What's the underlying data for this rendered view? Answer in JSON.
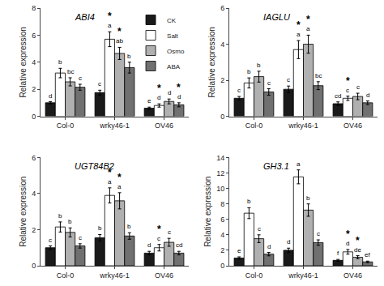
{
  "chart_data": [
    {
      "type": "bar",
      "title": "ABI4",
      "ylabel": "Relative expression",
      "categories": [
        "Col-0",
        "wrky46-1",
        "OV46"
      ],
      "ylim": [
        0,
        8
      ],
      "yticks": [
        0,
        2,
        4,
        6,
        8
      ],
      "grid": false,
      "legend": "upper right",
      "series": [
        {
          "name": "CK",
          "color": "#1a1a1a",
          "values": [
            1.0,
            1.75,
            0.6
          ],
          "errors": [
            0.08,
            0.18,
            0.08
          ],
          "letters": [
            "d",
            "c",
            "e"
          ],
          "stars": [
            null,
            null,
            null
          ]
        },
        {
          "name": "Salt",
          "color": "#ffffff",
          "values": [
            3.2,
            5.7,
            0.8
          ],
          "errors": [
            0.35,
            0.55,
            0.12
          ],
          "letters": [
            "b",
            "a",
            "d"
          ],
          "stars": [
            null,
            "*",
            "*"
          ]
        },
        {
          "name": "Osmo",
          "color": "#b0b0b0",
          "values": [
            2.55,
            4.65,
            1.1
          ],
          "errors": [
            0.3,
            0.45,
            0.18
          ],
          "letters": [
            "bc",
            "ab",
            "d"
          ],
          "stars": [
            null,
            "*",
            null
          ]
        },
        {
          "name": "ABA",
          "color": "#707070",
          "values": [
            2.15,
            3.6,
            0.85
          ],
          "errors": [
            0.22,
            0.4,
            0.15
          ],
          "letters": [
            "c",
            "b",
            "d"
          ],
          "stars": [
            null,
            null,
            "*"
          ]
        }
      ]
    },
    {
      "type": "bar",
      "title": "IAGLU",
      "ylabel": "Relative expression",
      "categories": [
        "Col-0",
        "wrky46-1",
        "OV46"
      ],
      "ylim": [
        0,
        6
      ],
      "yticks": [
        0,
        2,
        4,
        6
      ],
      "grid": false,
      "series": [
        {
          "name": "CK",
          "color": "#1a1a1a",
          "values": [
            1.0,
            1.5,
            0.7
          ],
          "errors": [
            0.1,
            0.18,
            0.1
          ],
          "letters": [
            "c",
            "c",
            "cd"
          ],
          "stars": [
            null,
            null,
            null
          ]
        },
        {
          "name": "Salt",
          "color": "#ffffff",
          "values": [
            1.85,
            3.7,
            1.0
          ],
          "errors": [
            0.28,
            0.5,
            0.12
          ],
          "letters": [
            "b",
            "a",
            "c"
          ],
          "stars": [
            null,
            "*",
            "*"
          ]
        },
        {
          "name": "Osmo",
          "color": "#b0b0b0",
          "values": [
            2.2,
            4.0,
            1.1
          ],
          "errors": [
            0.3,
            0.5,
            0.18
          ],
          "letters": [
            "b",
            "a",
            "c"
          ],
          "stars": [
            null,
            "*",
            null
          ]
        },
        {
          "name": "ABA",
          "color": "#707070",
          "values": [
            1.35,
            1.7,
            0.75
          ],
          "errors": [
            0.18,
            0.22,
            0.1
          ],
          "letters": [
            "c",
            "bc",
            "d"
          ],
          "stars": [
            null,
            null,
            null
          ]
        }
      ]
    },
    {
      "type": "bar",
      "title": "UGT84B2",
      "ylabel": "Relative expression",
      "categories": [
        "Col-0",
        "wrky46-1",
        "OV46"
      ],
      "ylim": [
        0,
        6
      ],
      "yticks": [
        0,
        2,
        4,
        6
      ],
      "grid": false,
      "series": [
        {
          "name": "CK",
          "color": "#1a1a1a",
          "values": [
            1.0,
            1.55,
            0.7
          ],
          "errors": [
            0.1,
            0.18,
            0.1
          ],
          "letters": [
            "c",
            "b",
            "d"
          ],
          "stars": [
            null,
            null,
            null
          ]
        },
        {
          "name": "Salt",
          "color": "#ffffff",
          "values": [
            2.15,
            3.9,
            1.0
          ],
          "errors": [
            0.28,
            0.42,
            0.18
          ],
          "letters": [
            "b",
            "a",
            "c"
          ],
          "stars": [
            null,
            "*",
            "*"
          ]
        },
        {
          "name": "Osmo",
          "color": "#b0b0b0",
          "values": [
            1.85,
            3.6,
            1.3
          ],
          "errors": [
            0.25,
            0.45,
            0.22
          ],
          "letters": [
            "b",
            "a",
            "c"
          ],
          "stars": [
            null,
            "*",
            null
          ]
        },
        {
          "name": "ABA",
          "color": "#707070",
          "values": [
            1.1,
            1.65,
            0.7
          ],
          "errors": [
            0.12,
            0.18,
            0.1
          ],
          "letters": [
            "c",
            "b",
            "cd"
          ],
          "stars": [
            null,
            null,
            null
          ]
        }
      ]
    },
    {
      "type": "bar",
      "title": "GH3.1",
      "ylabel": "Relative expression",
      "categories": [
        "Col-0",
        "wrky46-1",
        "OV46"
      ],
      "ylim": [
        0,
        14
      ],
      "yticks": [
        0,
        2,
        4,
        6,
        8,
        10,
        12,
        14
      ],
      "grid": false,
      "series": [
        {
          "name": "CK",
          "color": "#1a1a1a",
          "values": [
            1.0,
            2.0,
            0.7
          ],
          "errors": [
            0.15,
            0.28,
            0.12
          ],
          "letters": [
            "e",
            "d",
            "f"
          ],
          "stars": [
            null,
            null,
            null
          ]
        },
        {
          "name": "Salt",
          "color": "#ffffff",
          "values": [
            6.8,
            11.5,
            1.8
          ],
          "errors": [
            0.7,
            0.9,
            0.3
          ],
          "letters": [
            "b",
            "a",
            "d"
          ],
          "stars": [
            null,
            null,
            "*"
          ]
        },
        {
          "name": "Osmo",
          "color": "#b0b0b0",
          "values": [
            3.5,
            7.2,
            1.1
          ],
          "errors": [
            0.5,
            0.8,
            0.2
          ],
          "letters": [
            "c",
            "b",
            "de"
          ],
          "stars": [
            null,
            null,
            "*"
          ]
        },
        {
          "name": "ABA",
          "color": "#707070",
          "values": [
            1.5,
            3.0,
            0.5
          ],
          "errors": [
            0.22,
            0.35,
            0.1
          ],
          "letters": [
            "d",
            "c",
            "ef"
          ],
          "stars": [
            null,
            null,
            null
          ]
        }
      ]
    }
  ]
}
